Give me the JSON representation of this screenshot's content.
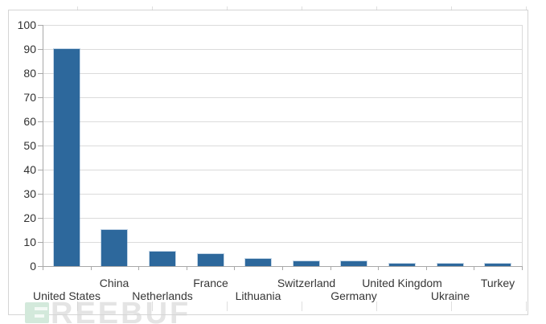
{
  "chart_data": {
    "type": "bar",
    "title": "",
    "xlabel": "",
    "ylabel": "",
    "categories": [
      "United States",
      "China",
      "Netherlands",
      "France",
      "Lithuania",
      "Switzerland",
      "Germany",
      "United Kingdom",
      "Ukraine",
      "Turkey"
    ],
    "values": [
      90,
      15,
      6,
      5,
      3,
      2,
      2,
      1,
      1,
      1
    ],
    "ylim": [
      0,
      100
    ],
    "ytick_step": 10,
    "y_tick_labels": [
      "0",
      "10",
      "20",
      "30",
      "40",
      "50",
      "60",
      "70",
      "80",
      "90",
      "100"
    ],
    "grid": true,
    "legend": "none",
    "x_label_layout": "staggered-two-rows",
    "colors": {
      "bar": "#2d689c",
      "gridline": "#dbdbdb",
      "axis": "#a8a8a8",
      "labels": "#333333",
      "frame_border": "#d5d5d5"
    }
  },
  "watermark": {
    "logo_icon": "freebuf-logo",
    "text": "REEBUF",
    "text_color": "#e4e4e4",
    "logo_color": "#d3e9db"
  }
}
